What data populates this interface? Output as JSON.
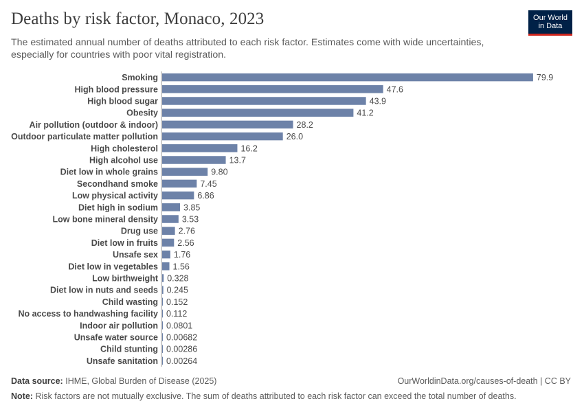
{
  "header": {
    "title": "Deaths by risk factor, Monaco, 2023",
    "subtitle": "The estimated annual number of deaths attributed to each risk factor. Estimates come with wide uncertainties, especially for countries with poor vital registration."
  },
  "logo": {
    "line1": "Our World",
    "line2": "in Data",
    "bg_color": "#002147",
    "accent_color": "#ce261e"
  },
  "footer": {
    "source_label": "Data source:",
    "source_text": "IHME, Global Burden of Disease (2025)",
    "url_text": "OurWorldinData.org/causes-of-death | CC BY",
    "note_label": "Note:",
    "note_text": "Risk factors are not mutually exclusive. The sum of deaths attributed to each risk factor can exceed the total number of deaths."
  },
  "colors": {
    "bar": "#6d82a8",
    "axis": "#999999"
  },
  "chart_data": {
    "type": "bar",
    "orientation": "horizontal",
    "title": "Deaths by risk factor, Monaco, 2023",
    "xlabel": "",
    "ylabel": "",
    "xlim": [
      0,
      80.8
    ],
    "categories": [
      "Smoking",
      "High blood pressure",
      "High blood sugar",
      "Obesity",
      "Air pollution (outdoor & indoor)",
      "Outdoor particulate matter pollution",
      "High cholesterol",
      "High alcohol use",
      "Diet low in whole grains",
      "Secondhand smoke",
      "Low physical activity",
      "Diet high in sodium",
      "Low bone mineral density",
      "Drug use",
      "Diet low in fruits",
      "Unsafe sex",
      "Diet low in vegetables",
      "Low birthweight",
      "Diet low in nuts and seeds",
      "Child wasting",
      "No access to handwashing facility",
      "Indoor air pollution",
      "Unsafe water source",
      "Child stunting",
      "Unsafe sanitation"
    ],
    "values": [
      79.9,
      47.6,
      43.9,
      41.2,
      28.2,
      26.0,
      16.2,
      13.7,
      9.8,
      7.45,
      6.86,
      3.85,
      3.53,
      2.76,
      2.56,
      1.76,
      1.56,
      0.328,
      0.245,
      0.152,
      0.112,
      0.0801,
      0.00682,
      0.00286,
      0.00264
    ],
    "value_labels": [
      "79.9",
      "47.6",
      "43.9",
      "41.2",
      "28.2",
      "26.0",
      "16.2",
      "13.7",
      "9.80",
      "7.45",
      "6.86",
      "3.85",
      "3.53",
      "2.76",
      "2.56",
      "1.76",
      "1.56",
      "0.328",
      "0.245",
      "0.152",
      "0.112",
      "0.0801",
      "0.00682",
      "0.00286",
      "0.00264"
    ]
  }
}
